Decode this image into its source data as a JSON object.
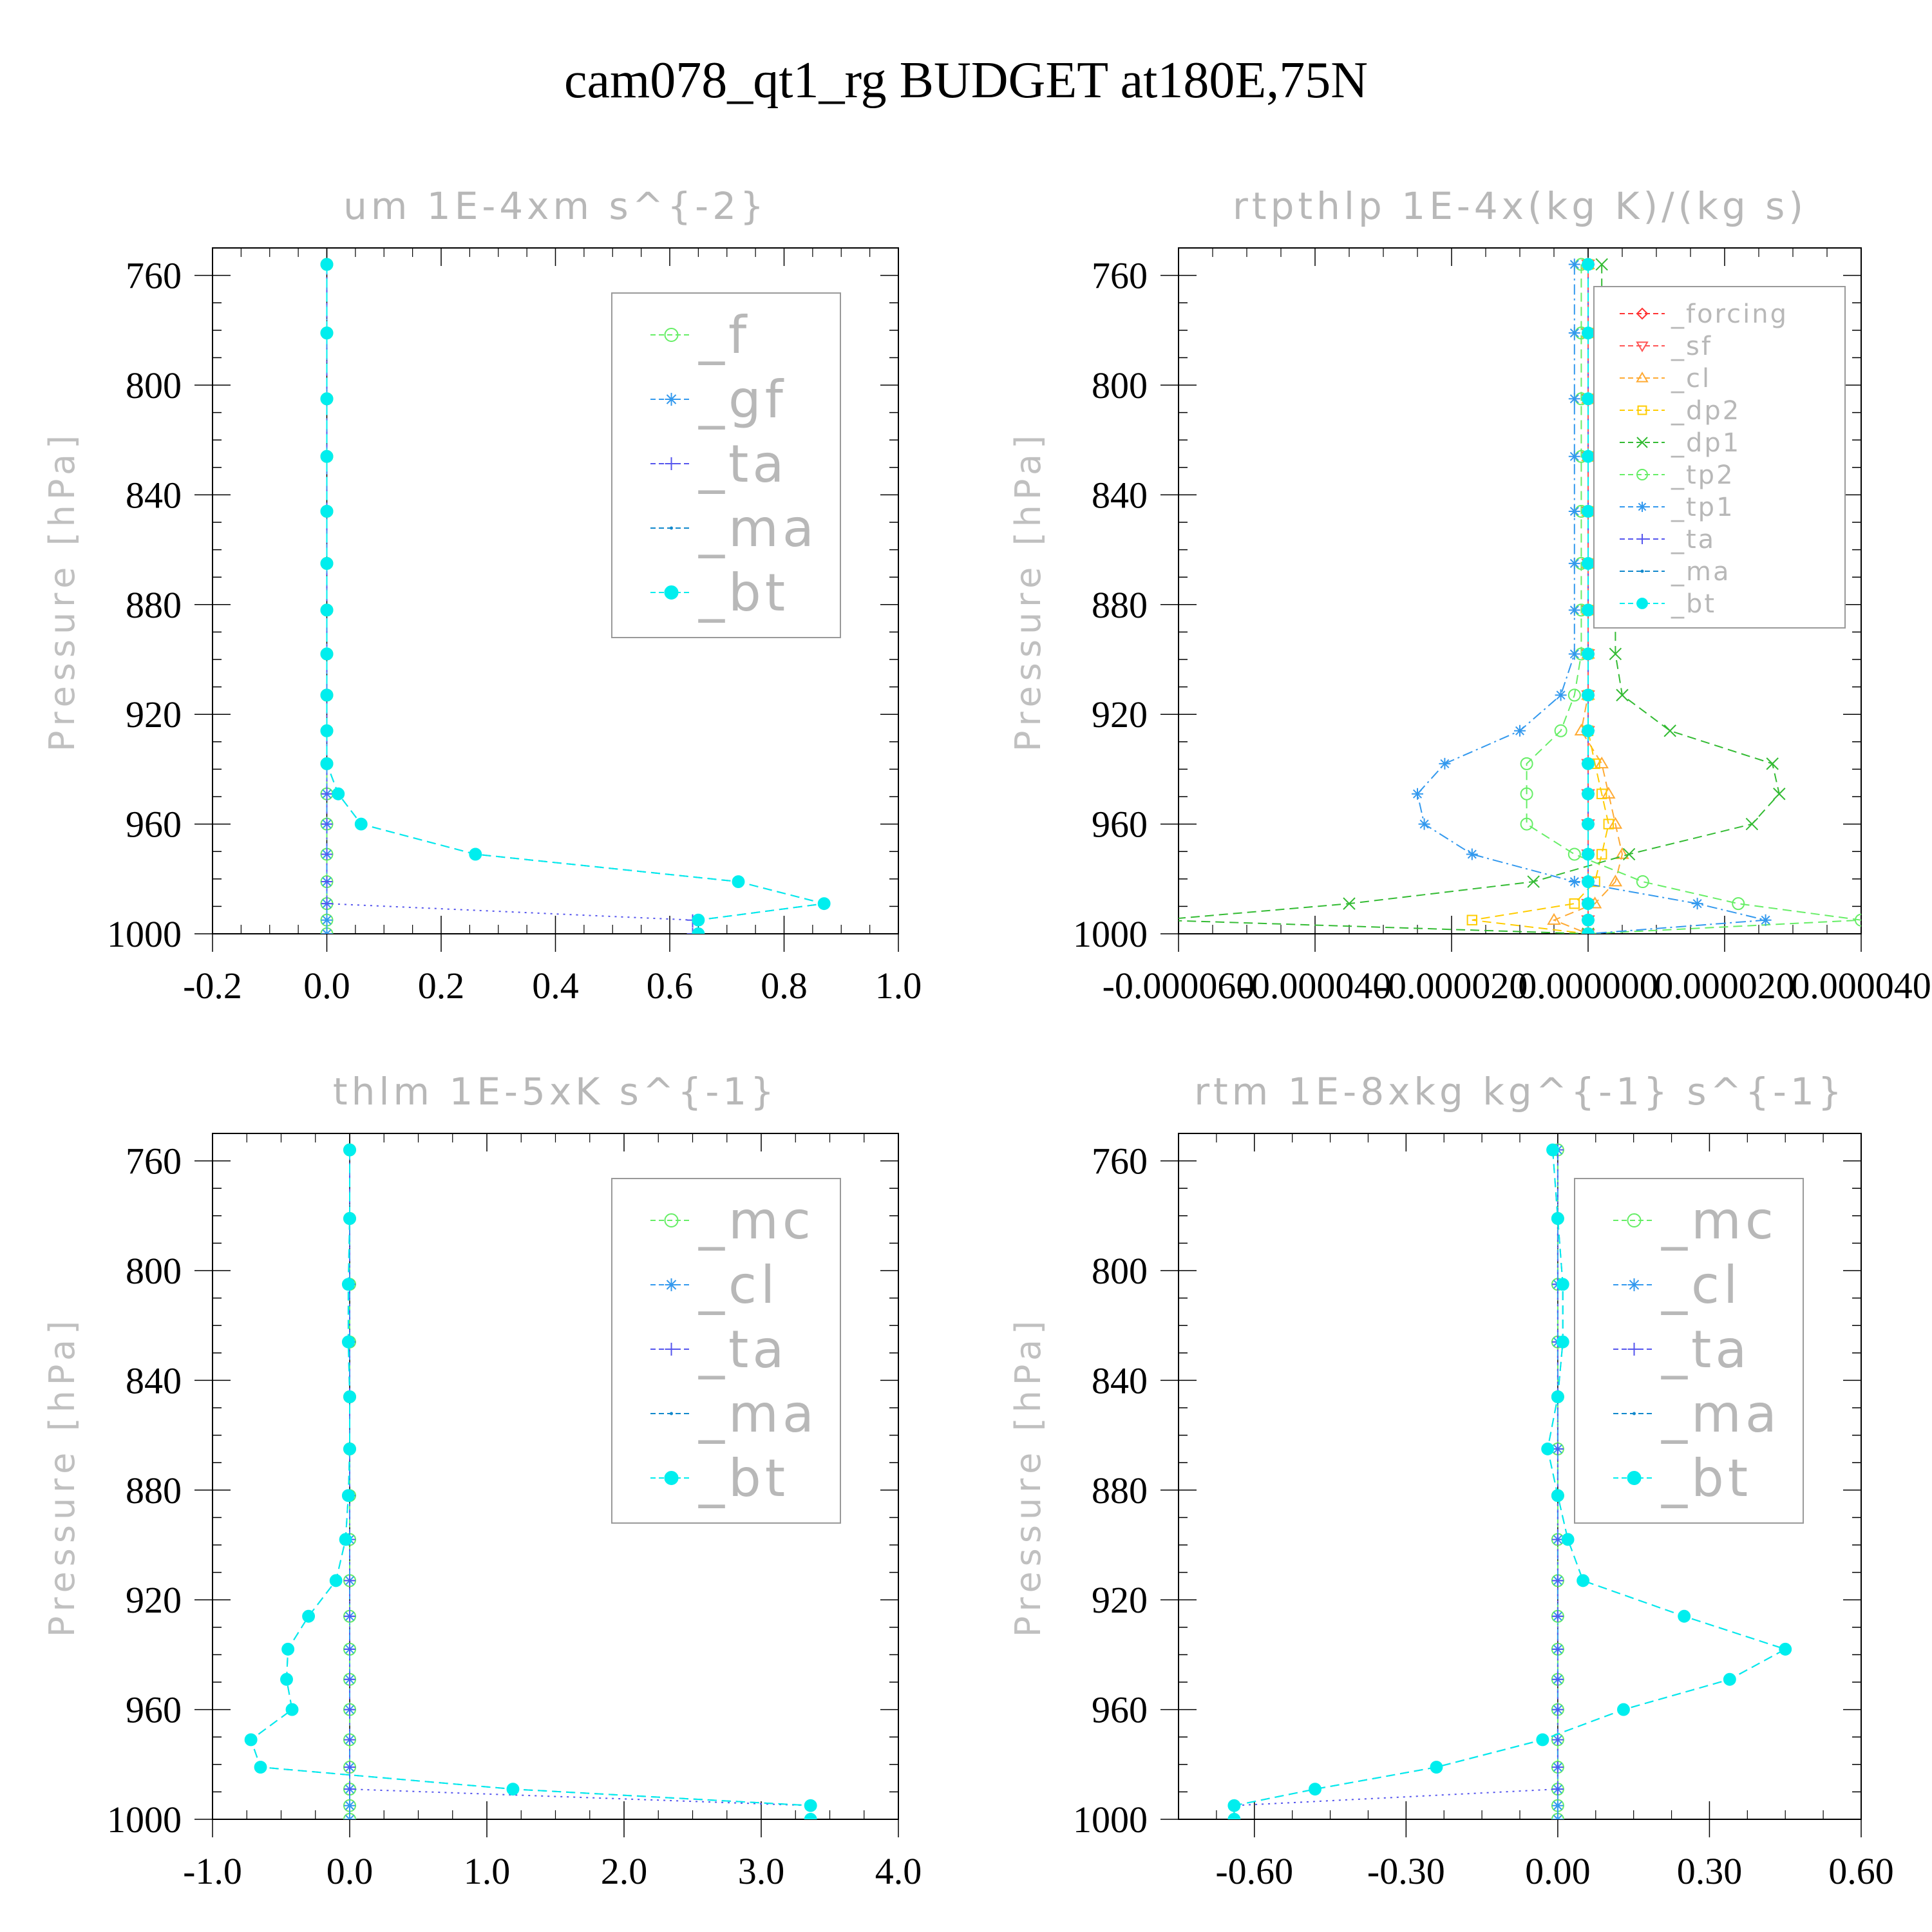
{
  "title": "cam078_qt1_rg  BUDGET at180E,75N",
  "colors": {
    "forcing": "#ff3333",
    "sf": "#ff5555",
    "cl_orange": "#ffaa33",
    "dp2": "#ffcc00",
    "dp1": "#33bb33",
    "tp2": "#66ee66",
    "tp1": "#3399ee",
    "ta": "#5555ee",
    "ma": "#1188cc",
    "bt": "#00eeee",
    "f": "#66ee66",
    "gf": "#3399ee",
    "mc": "#66ee66",
    "cl_blue": "#3399ee"
  },
  "chart_data": [
    {
      "type": "line",
      "title": "um   1E-4xm s^{-2}",
      "ylabel": "Pressure [hPa]",
      "xlim": [
        -0.2,
        1.0
      ],
      "ylim": [
        1000,
        750
      ],
      "xticks": [
        "-0.2",
        "0.0",
        "0.2",
        "0.4",
        "0.6",
        "0.8",
        "1.0"
      ],
      "xtick_values": [
        -0.2,
        0.0,
        0.2,
        0.4,
        0.6,
        0.8,
        1.0
      ],
      "yticks": [
        "760",
        "800",
        "840",
        "880",
        "920",
        "960",
        "1000"
      ],
      "ytick_values": [
        760,
        800,
        840,
        880,
        920,
        960,
        1000
      ],
      "legend_position": "top-right",
      "legend": [
        {
          "name": "_f",
          "color": "f",
          "marker": "circle"
        },
        {
          "name": "_gf",
          "color": "gf",
          "marker": "asterisk"
        },
        {
          "name": "_ta",
          "color": "ta",
          "marker": "plus"
        },
        {
          "name": "_ma",
          "color": "ma",
          "marker": "dot"
        },
        {
          "name": "_bt",
          "color": "bt",
          "marker": "filled"
        }
      ],
      "p": [
        756,
        781,
        805,
        826,
        846,
        865,
        882,
        898,
        913,
        926,
        938,
        949,
        960,
        971,
        981,
        989,
        995,
        1000
      ],
      "series": [
        {
          "name": "_f",
          "color": "f",
          "marker": "circle",
          "dash": "dash",
          "x": [
            0,
            0,
            0,
            0,
            0,
            0,
            0,
            0,
            0,
            0,
            0,
            0,
            0,
            0,
            0,
            0,
            0,
            0
          ]
        },
        {
          "name": "_gf",
          "color": "gf",
          "marker": "asterisk",
          "dash": "dashdot",
          "x": [
            0,
            0,
            0,
            0,
            0,
            0,
            0,
            0,
            0,
            0,
            0,
            0,
            0,
            0,
            0,
            0,
            0,
            0
          ]
        },
        {
          "name": "_ta",
          "color": "ta",
          "marker": "plus",
          "dash": "dot",
          "x": [
            0,
            0,
            0,
            0,
            0,
            0,
            0,
            0,
            0,
            0,
            0,
            0,
            0,
            0,
            0,
            0,
            0.64,
            0.64
          ]
        },
        {
          "name": "_ma",
          "color": "ma",
          "marker": "dot",
          "dash": "dash",
          "x": [
            0,
            0,
            0,
            0,
            0,
            0,
            0,
            0,
            0,
            0,
            0,
            0.02,
            0.06,
            0.26,
            0.72,
            0.87,
            0.65,
            0.65
          ]
        },
        {
          "name": "_bt",
          "color": "bt",
          "marker": "filled",
          "dash": "dash",
          "x": [
            0,
            0,
            0,
            0,
            0,
            0,
            0,
            0,
            0,
            0,
            0,
            0.02,
            0.06,
            0.26,
            0.72,
            0.87,
            0.65,
            0.65
          ]
        }
      ]
    },
    {
      "type": "line",
      "title": "rtpthlp   1E-4x(kg K)/(kg s)",
      "ylabel": "Pressure [hPa]",
      "xlim": [
        -6e-05,
        4e-05
      ],
      "ylim": [
        1000,
        750
      ],
      "xticks": [
        "-0.000060",
        "-0.000040",
        "-0.000020",
        "0.000000",
        "0.000020",
        "0.000040"
      ],
      "xtick_values": [
        -6e-05,
        -4e-05,
        -2e-05,
        0.0,
        2e-05,
        4e-05
      ],
      "yticks": [
        "760",
        "800",
        "840",
        "880",
        "920",
        "960",
        "1000"
      ],
      "ytick_values": [
        760,
        800,
        840,
        880,
        920,
        960,
        1000
      ],
      "legend_position": "top-right",
      "legend": [
        {
          "name": "_forcing",
          "color": "forcing",
          "marker": "diamond"
        },
        {
          "name": "_sf",
          "color": "sf",
          "marker": "tri-down"
        },
        {
          "name": "_cl",
          "color": "cl_orange",
          "marker": "tri-up"
        },
        {
          "name": "_dp2",
          "color": "dp2",
          "marker": "square"
        },
        {
          "name": "_dp1",
          "color": "dp1",
          "marker": "cross"
        },
        {
          "name": "_tp2",
          "color": "tp2",
          "marker": "circle"
        },
        {
          "name": "_tp1",
          "color": "tp1",
          "marker": "asterisk"
        },
        {
          "name": "_ta",
          "color": "ta",
          "marker": "plus"
        },
        {
          "name": "_ma",
          "color": "ma",
          "marker": "dot"
        },
        {
          "name": "_bt",
          "color": "bt",
          "marker": "filled"
        }
      ],
      "p": [
        756,
        781,
        805,
        826,
        846,
        865,
        882,
        898,
        913,
        926,
        938,
        949,
        960,
        971,
        981,
        989,
        995,
        1000
      ],
      "series": [
        {
          "name": "_forcing",
          "color": "forcing",
          "marker": "diamond",
          "dash": "solid",
          "x": [
            0,
            0,
            0,
            0,
            0,
            0,
            0,
            0,
            0,
            0,
            0,
            0,
            0,
            0,
            0,
            0,
            0,
            0
          ]
        },
        {
          "name": "_sf",
          "color": "sf",
          "marker": "tri-down",
          "dash": "solid",
          "x": [
            0,
            0,
            0,
            0,
            0,
            0,
            0,
            0,
            0,
            0,
            0,
            0,
            0,
            0,
            0,
            0,
            0,
            0
          ]
        },
        {
          "name": "_cl",
          "color": "cl_orange",
          "marker": "tri-up",
          "dash": "dash",
          "x": [
            0,
            0,
            0,
            0,
            0,
            0,
            0,
            0,
            0,
            -1e-06,
            2e-06,
            3e-06,
            4e-06,
            5e-06,
            4e-06,
            1e-06,
            -5e-06,
            0
          ]
        },
        {
          "name": "_dp2",
          "color": "dp2",
          "marker": "square",
          "dash": "dash",
          "x": [
            0,
            0,
            0,
            0,
            0,
            0,
            0,
            0,
            0,
            0,
            1e-06,
            2e-06,
            3e-06,
            2e-06,
            1e-06,
            -2e-06,
            -1.7e-05,
            0
          ]
        },
        {
          "name": "_dp1",
          "color": "dp1",
          "marker": "cross",
          "dash": "dash",
          "x": [
            2e-06,
            2e-06,
            2e-06,
            3e-06,
            3e-06,
            3e-06,
            4e-06,
            4e-06,
            5e-06,
            1.2e-05,
            2.7e-05,
            2.8e-05,
            2.4e-05,
            6e-06,
            -8e-06,
            -3.5e-05,
            -6.3e-05,
            0
          ]
        },
        {
          "name": "_tp2",
          "color": "tp2",
          "marker": "circle",
          "dash": "dash",
          "x": [
            -1e-06,
            -1e-06,
            -1e-06,
            -1e-06,
            -1e-06,
            -1e-06,
            -1e-06,
            -1e-06,
            -2e-06,
            -4e-06,
            -9e-06,
            -9e-06,
            -9e-06,
            -2e-06,
            8e-06,
            2.2e-05,
            4e-05,
            0
          ]
        },
        {
          "name": "_tp1",
          "color": "tp1",
          "marker": "asterisk",
          "dash": "dashdot",
          "x": [
            -2e-06,
            -2e-06,
            -2e-06,
            -2e-06,
            -2e-06,
            -2e-06,
            -2e-06,
            -2e-06,
            -4e-06,
            -1e-05,
            -2.1e-05,
            -2.5e-05,
            -2.4e-05,
            -1.7e-05,
            -2e-06,
            1.6e-05,
            2.6e-05,
            0
          ]
        },
        {
          "name": "_ta",
          "color": "ta",
          "marker": "plus",
          "dash": "dot",
          "x": [
            0,
            0,
            0,
            0,
            0,
            0,
            0,
            0,
            0,
            0,
            0,
            0,
            0,
            0,
            0,
            0,
            0,
            0
          ]
        },
        {
          "name": "_ma",
          "color": "ma",
          "marker": "dot",
          "dash": "dash",
          "x": [
            0,
            0,
            0,
            0,
            0,
            0,
            0,
            0,
            0,
            0,
            0,
            0,
            0,
            0,
            0,
            0,
            0,
            0
          ]
        },
        {
          "name": "_bt",
          "color": "bt",
          "marker": "filled",
          "dash": "dash",
          "x": [
            0,
            0,
            0,
            0,
            0,
            0,
            0,
            0,
            0,
            0,
            0,
            0,
            0,
            0,
            0,
            0,
            0,
            0
          ]
        }
      ]
    },
    {
      "type": "line",
      "title": "thlm   1E-5xK s^{-1}",
      "ylabel": "Pressure [hPa]",
      "xlim": [
        -1.0,
        4.0
      ],
      "ylim": [
        1000,
        750
      ],
      "xticks": [
        "-1.0",
        "0.0",
        "1.0",
        "2.0",
        "3.0",
        "4.0"
      ],
      "xtick_values": [
        -1.0,
        0.0,
        1.0,
        2.0,
        3.0,
        4.0
      ],
      "yticks": [
        "760",
        "800",
        "840",
        "880",
        "920",
        "960",
        "1000"
      ],
      "ytick_values": [
        760,
        800,
        840,
        880,
        920,
        960,
        1000
      ],
      "legend_position": "top-right",
      "legend": [
        {
          "name": "_mc",
          "color": "mc",
          "marker": "circle"
        },
        {
          "name": "_cl",
          "color": "cl_blue",
          "marker": "asterisk"
        },
        {
          "name": "_ta",
          "color": "ta",
          "marker": "plus"
        },
        {
          "name": "_ma",
          "color": "ma",
          "marker": "dot"
        },
        {
          "name": "_bt",
          "color": "bt",
          "marker": "filled"
        }
      ],
      "p": [
        756,
        781,
        805,
        826,
        846,
        865,
        882,
        898,
        913,
        926,
        938,
        949,
        960,
        971,
        981,
        989,
        995,
        1000
      ],
      "series": [
        {
          "name": "_mc",
          "color": "mc",
          "marker": "circle",
          "dash": "dash",
          "x": [
            0,
            0,
            0,
            0,
            0,
            0,
            0,
            0,
            0,
            0,
            0,
            0,
            0,
            0,
            0,
            0,
            0,
            0
          ]
        },
        {
          "name": "_cl",
          "color": "cl_blue",
          "marker": "asterisk",
          "dash": "dashdot",
          "x": [
            0,
            0,
            0,
            0,
            0,
            0,
            0,
            0,
            0,
            0,
            0,
            0,
            0,
            0,
            0,
            0,
            0,
            0
          ]
        },
        {
          "name": "_ta",
          "color": "ta",
          "marker": "plus",
          "dash": "dot",
          "x": [
            0,
            0,
            0,
            0,
            0,
            0,
            0,
            0,
            0,
            0,
            0,
            0,
            0,
            0,
            0,
            0,
            3.36,
            3.36
          ]
        },
        {
          "name": "_ma",
          "color": "ma",
          "marker": "dot",
          "dash": "dash",
          "x": [
            0,
            0,
            -0.01,
            -0.01,
            0,
            0,
            -0.01,
            -0.03,
            -0.1,
            -0.3,
            -0.45,
            -0.46,
            -0.42,
            -0.72,
            -0.65,
            1.19,
            3.36,
            3.36
          ]
        },
        {
          "name": "_bt",
          "color": "bt",
          "marker": "filled",
          "dash": "dash",
          "x": [
            0,
            0,
            -0.01,
            -0.01,
            0,
            0,
            -0.01,
            -0.03,
            -0.1,
            -0.3,
            -0.45,
            -0.46,
            -0.42,
            -0.72,
            -0.65,
            1.19,
            3.36,
            3.36
          ]
        }
      ]
    },
    {
      "type": "line",
      "title": "rtm   1E-8xkg kg^{-1} s^{-1}",
      "ylabel": "Pressure [hPa]",
      "xlim": [
        -0.75,
        0.6
      ],
      "ylim": [
        1000,
        750
      ],
      "xticks": [
        "-0.60",
        "-0.30",
        "0.00",
        "0.30",
        "0.60"
      ],
      "xtick_values": [
        -0.6,
        -0.3,
        0.0,
        0.3,
        0.6
      ],
      "yticks": [
        "760",
        "800",
        "840",
        "880",
        "920",
        "960",
        "1000"
      ],
      "ytick_values": [
        760,
        800,
        840,
        880,
        920,
        960,
        1000
      ],
      "legend_position": "top-right",
      "legend": [
        {
          "name": "_mc",
          "color": "mc",
          "marker": "circle"
        },
        {
          "name": "_cl",
          "color": "cl_blue",
          "marker": "asterisk"
        },
        {
          "name": "_ta",
          "color": "ta",
          "marker": "plus"
        },
        {
          "name": "_ma",
          "color": "ma",
          "marker": "dot"
        },
        {
          "name": "_bt",
          "color": "bt",
          "marker": "filled"
        }
      ],
      "p": [
        756,
        781,
        805,
        826,
        846,
        865,
        882,
        898,
        913,
        926,
        938,
        949,
        960,
        971,
        981,
        989,
        995,
        1000
      ],
      "series": [
        {
          "name": "_mc",
          "color": "mc",
          "marker": "circle",
          "dash": "dash",
          "x": [
            0,
            0,
            0,
            0,
            0,
            0,
            0,
            0,
            0,
            0,
            0,
            0,
            0,
            0,
            0,
            0,
            0,
            0
          ]
        },
        {
          "name": "_cl",
          "color": "cl_blue",
          "marker": "asterisk",
          "dash": "dashdot",
          "x": [
            0,
            0,
            0,
            0,
            0,
            0,
            0,
            0,
            0,
            0,
            0,
            0,
            0,
            0,
            0,
            0,
            0,
            0
          ]
        },
        {
          "name": "_ta",
          "color": "ta",
          "marker": "plus",
          "dash": "dot",
          "x": [
            0,
            0,
            0,
            0,
            0,
            0,
            0,
            0,
            0,
            0,
            0,
            0,
            0,
            0,
            0,
            0,
            -0.64,
            -0.64
          ]
        },
        {
          "name": "_ma",
          "color": "ma",
          "marker": "dot",
          "dash": "dash",
          "x": [
            -0.01,
            0,
            0.01,
            0.01,
            0,
            -0.02,
            0,
            0.02,
            0.05,
            0.25,
            0.45,
            0.34,
            0.13,
            -0.03,
            -0.24,
            -0.48,
            -0.64,
            -0.64
          ]
        },
        {
          "name": "_bt",
          "color": "bt",
          "marker": "filled",
          "dash": "dash",
          "x": [
            -0.01,
            0,
            0.01,
            0.01,
            0,
            -0.02,
            0,
            0.02,
            0.05,
            0.25,
            0.45,
            0.34,
            0.13,
            -0.03,
            -0.24,
            -0.48,
            -0.64,
            -0.64
          ]
        }
      ]
    }
  ]
}
